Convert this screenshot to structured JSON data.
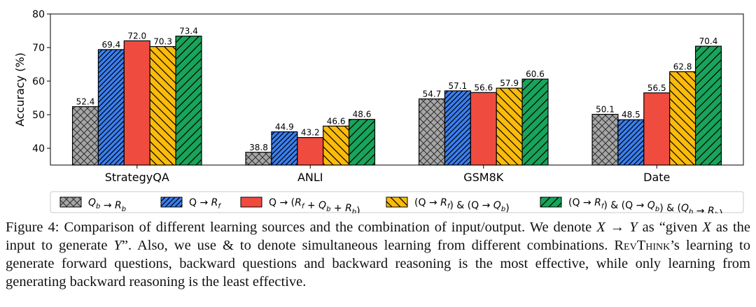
{
  "chart_data": {
    "type": "bar",
    "title": "",
    "xlabel": "",
    "ylabel": "Accuracy (%)",
    "ylim": [
      35,
      80
    ],
    "yticks": [
      "40",
      "50",
      "60",
      "70",
      "80"
    ],
    "categories": [
      "StrategyQA",
      "ANLI",
      "GSM8K",
      "Date"
    ],
    "grid": false,
    "legend_position": "bottom",
    "series": [
      {
        "name": "Q_b → R_b",
        "legend_parts": [
          [
            "Q",
            "b"
          ],
          " → ",
          [
            "R",
            "b"
          ]
        ],
        "values": [
          52.4,
          38.8,
          54.7,
          50.1
        ],
        "color": "#a6a6a6",
        "hatch": "crosshatch"
      },
      {
        "name": "Q → R_f",
        "legend_parts": [
          "Q → ",
          [
            "R",
            "f"
          ]
        ],
        "values": [
          69.4,
          44.9,
          57.1,
          48.5
        ],
        "color": "#3a7ff0",
        "hatch": "dense-diagonal"
      },
      {
        "name": "Q → (R_f + Q_b + R_b)",
        "legend_parts": [
          "Q → (",
          [
            "R",
            "f"
          ],
          " + ",
          [
            "Q",
            "b"
          ],
          " + ",
          [
            "R",
            "b"
          ],
          ")"
        ],
        "values": [
          72.0,
          43.2,
          56.6,
          56.5
        ],
        "color": "#ef4b3f",
        "hatch": "none"
      },
      {
        "name": "(Q → R_f) & (Q → Q_b)",
        "legend_parts": [
          "(Q → ",
          [
            "R",
            "f"
          ],
          ") & (Q → ",
          [
            "Q",
            "b"
          ],
          ")"
        ],
        "values": [
          70.3,
          46.6,
          57.9,
          62.8
        ],
        "color": "#fbbb0b",
        "hatch": "backslash"
      },
      {
        "name": "(Q → R_f) & (Q → Q_b) & (Q_b → R_b)",
        "legend_parts": [
          "(Q → ",
          [
            "R",
            "f"
          ],
          ") & (Q → ",
          [
            "Q",
            "b"
          ],
          ") & (",
          [
            "Q",
            "b"
          ],
          " → ",
          [
            "R",
            "b"
          ],
          ")"
        ],
        "values": [
          73.4,
          48.6,
          60.6,
          70.4
        ],
        "color": "#18a45a",
        "hatch": "diagonal"
      }
    ]
  },
  "caption": {
    "label": "Figure 4:",
    "text_1": " Comparison of different learning sources and the combination of input/output. We denote ",
    "math_x": "X",
    "arrow": " → ",
    "math_y": "Y",
    "text_2": " as “given ",
    "math_x2": "X",
    "text_3": " as the input to generate ",
    "math_y2": "Y",
    "text_4": "”. Also, we use & to denote simultaneous learning from different combinations. ",
    "name": "RevThink",
    "text_5": "’s learning to generate forward questions, backward questions and backward reasoning is the most effective, while only learning from generating backward reasoning is the least effective."
  }
}
